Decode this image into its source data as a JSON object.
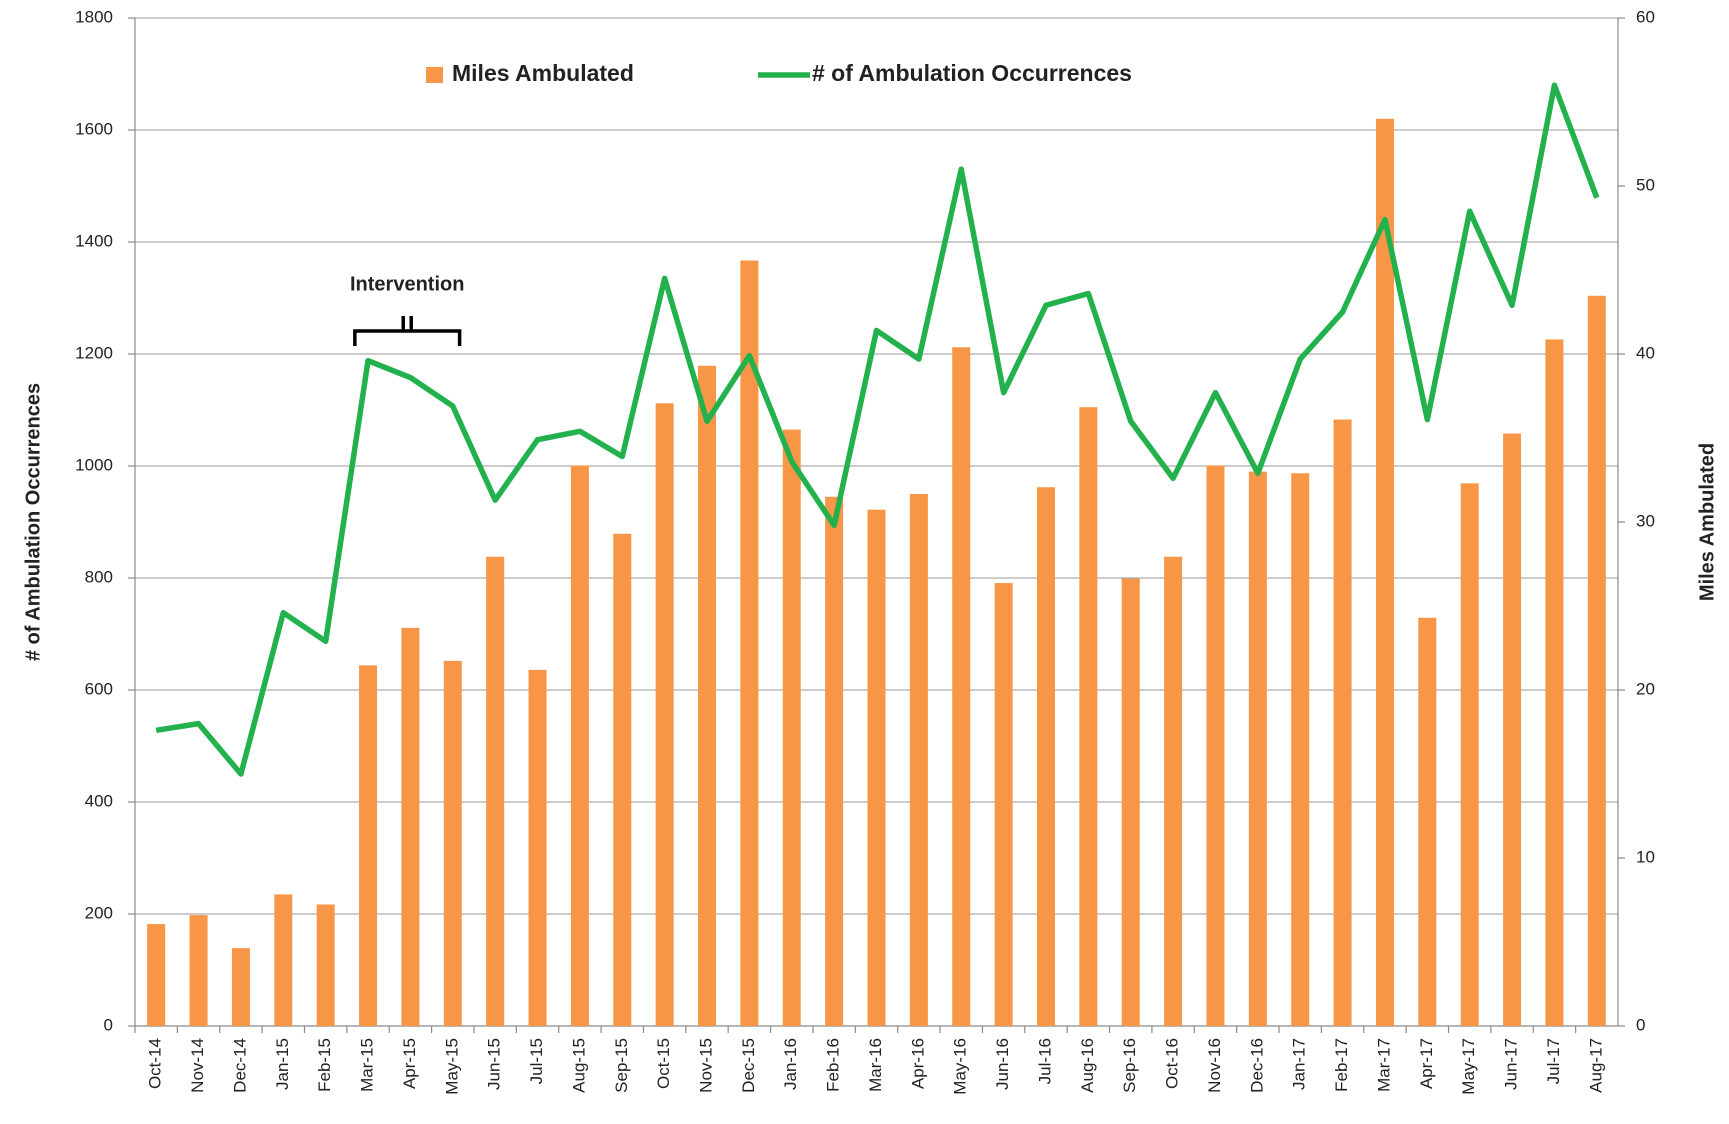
{
  "chart_data": {
    "type": "bar_line",
    "ylabel": "# of Ambulation Occurrences",
    "y2label": "Miles Ambulated",
    "categories": [
      "Oct-14",
      "Nov-14",
      "Dec-14",
      "Jan-15",
      "Feb-15",
      "Mar-15",
      "Apr-15",
      "May-15",
      "Jun-15",
      "Jul-15",
      "Aug-15",
      "Sep-15",
      "Oct-15",
      "Nov-15",
      "Dec-15",
      "Jan-16",
      "Feb-16",
      "Mar-16",
      "Apr-16",
      "May-16",
      "Jun-16",
      "Jul-16",
      "Aug-16",
      "Sep-16",
      "Oct-16",
      "Nov-16",
      "Dec-16",
      "Jan-17",
      "Feb-17",
      "Mar-17",
      "Apr-17",
      "May-17",
      "Jun-17",
      "Jul-17",
      "Aug-17"
    ],
    "series": [
      {
        "name": "Miles Ambulated",
        "type": "bar",
        "color": "#f79646",
        "axis": "y",
        "values": [
          182,
          198,
          139,
          235,
          217,
          644,
          711,
          652,
          838,
          636,
          1001,
          879,
          1112,
          1179,
          1367,
          1065,
          945,
          922,
          950,
          1212,
          791,
          962,
          1105,
          799,
          838,
          1001,
          990,
          987,
          1083,
          1620,
          729,
          969,
          1058,
          1226,
          1304
        ]
      },
      {
        "name": "# of Ambulation Occurrences",
        "type": "line",
        "color": "#22b14c",
        "axis": "y2",
        "values": [
          17.6,
          18.0,
          15.0,
          24.6,
          22.9,
          39.6,
          38.6,
          36.9,
          31.3,
          34.9,
          35.4,
          33.9,
          44.5,
          36.0,
          39.9,
          33.6,
          29.8,
          41.4,
          39.7,
          51.0,
          37.7,
          42.9,
          43.6,
          36.0,
          32.6,
          37.7,
          32.9,
          39.7,
          42.5,
          48.0,
          36.1,
          48.5,
          42.9,
          56.0,
          49.3
        ]
      }
    ],
    "ylim": [
      0,
      1800
    ],
    "yticks": [
      0,
      200,
      400,
      600,
      800,
      1000,
      1200,
      1400,
      1600,
      1800
    ],
    "y2lim": [
      0,
      60
    ],
    "y2ticks": [
      0,
      10,
      20,
      30,
      40,
      50,
      60
    ],
    "grid": true,
    "legend": "top",
    "annotations": [
      {
        "text": "Intervention"
      }
    ]
  }
}
